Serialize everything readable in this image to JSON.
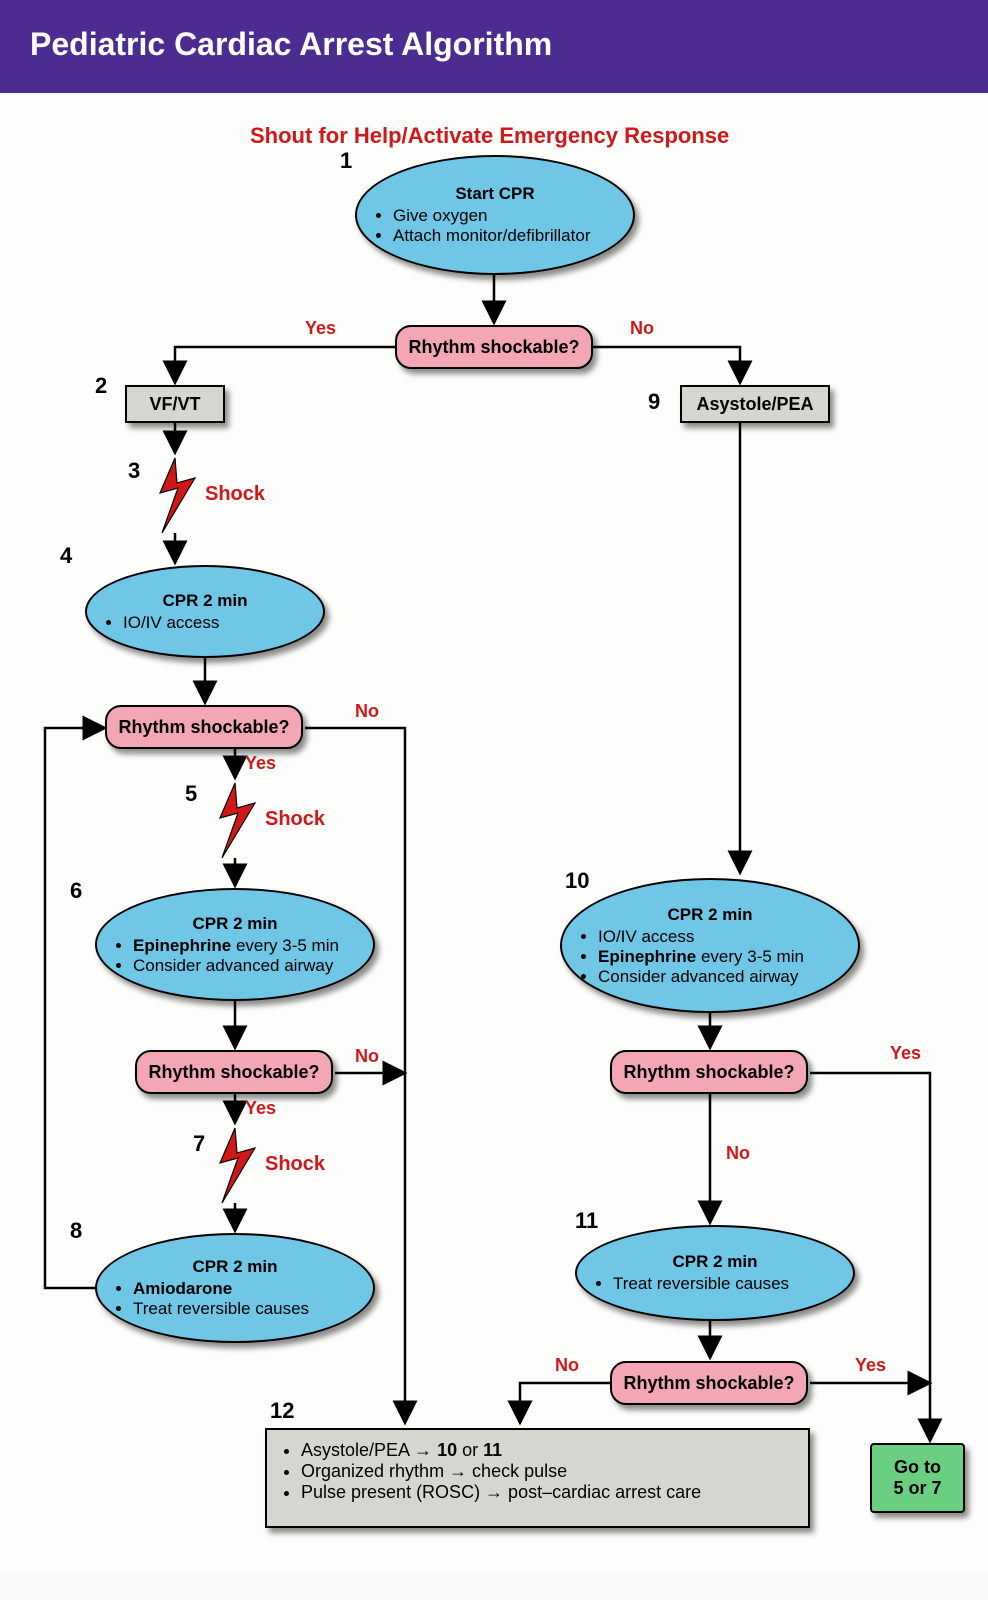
{
  "header": {
    "title": "Pediatric Cardiac Arrest Algorithm"
  },
  "subtitle": "Shout for Help/Activate Emergency Response",
  "colors": {
    "header_bg": "#4d2c91",
    "oval": "#6fc6e5",
    "pink": "#f3a6b4",
    "grey": "#d6d6d1",
    "green": "#6bcf82",
    "red": "#d01818"
  },
  "nodes": {
    "n1": {
      "num": "1",
      "title": "Start CPR",
      "bullets": [
        "Give oxygen",
        "Attach monitor/defibrillator"
      ]
    },
    "d1": {
      "label": "Rhythm shockable?"
    },
    "n2": {
      "num": "2",
      "label": "VF/VT"
    },
    "n9": {
      "num": "9",
      "label": "Asystole/PEA"
    },
    "s3": {
      "num": "3",
      "label": "Shock"
    },
    "n4": {
      "num": "4",
      "title": "CPR 2 min",
      "bullets": [
        "IO/IV access"
      ]
    },
    "d2": {
      "label": "Rhythm shockable?"
    },
    "s5": {
      "num": "5",
      "label": "Shock"
    },
    "n6": {
      "num": "6",
      "title": "CPR 2 min",
      "bullets_html": "<b>Epinephrine</b> every 3-5 min||Consider advanced airway"
    },
    "d3": {
      "label": "Rhythm shockable?"
    },
    "s7": {
      "num": "7",
      "label": "Shock"
    },
    "n8": {
      "num": "8",
      "title": "CPR 2 min",
      "bullets_html": "<b>Amiodarone</b>||Treat reversible causes"
    },
    "n10": {
      "num": "10",
      "title": "CPR 2 min",
      "bullets_html": "IO/IV access||<b>Epinephrine</b> every 3-5 min||Consider advanced airway"
    },
    "d4": {
      "label": "Rhythm shockable?"
    },
    "n11": {
      "num": "11",
      "title": "CPR 2 min",
      "bullets": [
        "Treat reversible causes"
      ]
    },
    "d5": {
      "label": "Rhythm shockable?"
    },
    "n12": {
      "num": "12",
      "bullets_html": "Asystole/PEA → <b>10</b> or <b>11</b>||Organized rhythm → check pulse||Pulse present (ROSC) → post–cardiac arrest care"
    },
    "goto": {
      "label": "Go to\n5 or 7"
    }
  },
  "edge_labels": {
    "yes": "Yes",
    "no": "No"
  }
}
